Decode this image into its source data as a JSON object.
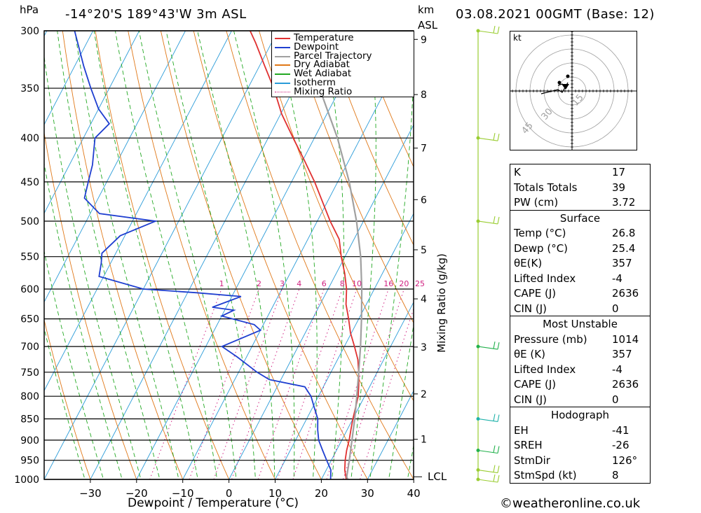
{
  "header": {
    "location": "-14°20'S  189°43'W  3m  ASL",
    "datetime": "03.08.2021  00GMT  (Base: 12)",
    "hpa_label": "hPa",
    "km_label": "km",
    "asl_label": "ASL",
    "kt_label": "kt"
  },
  "chart_data": {
    "type": "skew-t",
    "title": "-14°20'S 189°43'W 3m ASL",
    "xlabel": "Dewpoint / Temperature (°C)",
    "ylabel": "hPa",
    "y2label": "Mixing Ratio (g/kg)",
    "xlim": [
      -40,
      40
    ],
    "x_ticks": [
      -30,
      -20,
      -10,
      0,
      10,
      20,
      30,
      40
    ],
    "pressure_ticks": [
      300,
      350,
      400,
      450,
      500,
      550,
      600,
      650,
      700,
      750,
      800,
      850,
      900,
      950,
      1000
    ],
    "km_ticks": [
      {
        "km": 1,
        "p": 898
      },
      {
        "km": 2,
        "p": 795
      },
      {
        "km": 3,
        "p": 701
      },
      {
        "km": 4,
        "p": 616
      },
      {
        "km": 5,
        "p": 540
      },
      {
        "km": 6,
        "p": 472
      },
      {
        "km": 7,
        "p": 411
      },
      {
        "km": 8,
        "p": 356
      },
      {
        "km": 9,
        "p": 307
      }
    ],
    "lcl_label": "LCL",
    "lcl_pressure": 993,
    "mixing_ratio_lines": [
      "1",
      "2",
      "3",
      "4",
      "6",
      "8",
      "10",
      "16",
      "20",
      "25"
    ],
    "series": [
      {
        "name": "Temperature",
        "color": "#e03030",
        "p": [
          1014,
          1000,
          975,
          950,
          925,
          900,
          875,
          850,
          800,
          775,
          750,
          725,
          700,
          675,
          650,
          625,
          600,
          575,
          550,
          525,
          500,
          475,
          450,
          425,
          400,
          375,
          350,
          330,
          310,
          300
        ],
        "t": [
          26.8,
          25.4,
          24.0,
          23.0,
          22.2,
          21.6,
          20.8,
          20.0,
          18.6,
          17.4,
          16.0,
          14.4,
          12.2,
          9.8,
          7.8,
          5.6,
          4.0,
          1.8,
          -0.8,
          -3.2,
          -7.2,
          -11.0,
          -15.0,
          -19.6,
          -24.6,
          -29.8,
          -34.4,
          -38.8,
          -43.4,
          -46.0
        ]
      },
      {
        "name": "Dewpoint",
        "color": "#1f3fd0",
        "p": [
          1014,
          1000,
          975,
          950,
          925,
          900,
          875,
          850,
          825,
          800,
          780,
          765,
          750,
          720,
          700,
          670,
          660,
          645,
          635,
          630,
          612,
          606,
          600,
          580,
          560,
          545,
          520,
          500,
          490,
          470,
          450,
          430,
          400,
          385,
          370,
          350,
          330,
          300
        ],
        "t": [
          25.4,
          22.0,
          21.0,
          19.0,
          17.0,
          15.0,
          13.6,
          12.4,
          10.4,
          8.4,
          6.0,
          -2.5,
          -6.0,
          -12.0,
          -16.5,
          -10.0,
          -12.0,
          -20.0,
          -18.0,
          -23.0,
          -18.0,
          -28.0,
          -40.0,
          -51.0,
          -52.0,
          -53.0,
          -51.0,
          -45.0,
          -58.0,
          -63.0,
          -64.0,
          -65.0,
          -67.5,
          -66.0,
          -70.0,
          -74.0,
          -78.0,
          -84.0
        ]
      },
      {
        "name": "Parcel Trajectory",
        "color": "#a0a0a0",
        "p": [
          1014,
          993,
          950,
          900,
          850,
          800,
          750,
          700,
          650,
          600,
          550,
          500,
          450,
          400,
          350
        ],
        "t": [
          26.8,
          25.2,
          23.9,
          22.2,
          20.4,
          18.3,
          16.0,
          13.5,
          10.6,
          7.3,
          3.4,
          -1.5,
          -7.5,
          -15.0,
          -24.5
        ]
      }
    ],
    "legend": [
      "Temperature",
      "Dewpoint",
      "Parcel Trajectory",
      "Dry Adiabat",
      "Wet Adiabat",
      "Isotherm",
      "Mixing Ratio"
    ],
    "legend_colors": [
      "#e03030",
      "#1f3fd0",
      "#a0a0a0",
      "#e07818",
      "#22a822",
      "#2a9bd8",
      "#d02080"
    ],
    "wind_barbs": [
      {
        "p": 1000,
        "color": "#9acd32"
      },
      {
        "p": 975,
        "color": "#9acd32"
      },
      {
        "p": 925,
        "color": "#22b14c"
      },
      {
        "p": 850,
        "color": "#20b2aa"
      },
      {
        "p": 700,
        "color": "#22b14c"
      },
      {
        "p": 500,
        "color": "#9acd32"
      },
      {
        "p": 400,
        "color": "#9acd32"
      },
      {
        "p": 300,
        "color": "#9acd32"
      }
    ],
    "hodograph": {
      "ring_labels": [
        "15",
        "30",
        "45"
      ],
      "unit": "kt"
    }
  },
  "indices": [
    {
      "label": "K",
      "value": "17"
    },
    {
      "label": "Totals Totals",
      "value": "39"
    },
    {
      "label": "PW (cm)",
      "value": "3.72"
    }
  ],
  "surface": {
    "title": "Surface",
    "rows": [
      {
        "label": "Temp (°C)",
        "value": "26.8"
      },
      {
        "label": "Dewp (°C)",
        "value": "25.4"
      },
      {
        "label": "θE(K)",
        "value": "357"
      },
      {
        "label": "Lifted Index",
        "value": "-4"
      },
      {
        "label": "CAPE (J)",
        "value": "2636"
      },
      {
        "label": "CIN (J)",
        "value": "0"
      }
    ]
  },
  "most_unstable": {
    "title": "Most Unstable",
    "rows": [
      {
        "label": "Pressure (mb)",
        "value": "1014"
      },
      {
        "label": "θE (K)",
        "value": "357"
      },
      {
        "label": "Lifted Index",
        "value": "-4"
      },
      {
        "label": "CAPE (J)",
        "value": "2636"
      },
      {
        "label": "CIN (J)",
        "value": "0"
      }
    ]
  },
  "hodograph_table": {
    "title": "Hodograph",
    "rows": [
      {
        "label": "EH",
        "value": "-41"
      },
      {
        "label": "SREH",
        "value": "-26"
      },
      {
        "label": "StmDir",
        "value": "126°"
      },
      {
        "label": "StmSpd (kt)",
        "value": "8"
      }
    ]
  },
  "footer": {
    "copyright": "©weatheronline.co.uk"
  }
}
